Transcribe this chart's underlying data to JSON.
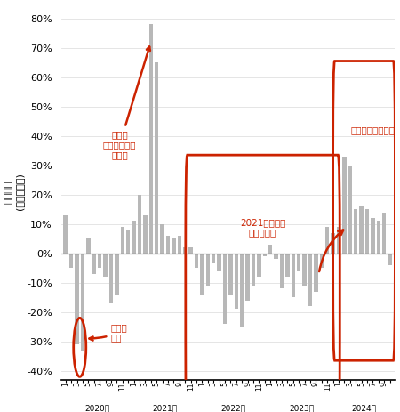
{
  "ylabel": "成約戸数\n(前年同月比)",
  "ylim": [
    -0.43,
    0.85
  ],
  "yticks": [
    -0.4,
    -0.3,
    -0.2,
    -0.1,
    0.0,
    0.1,
    0.2,
    0.3,
    0.4,
    0.5,
    0.6,
    0.7,
    0.8
  ],
  "bar_color": "#b8b8b8",
  "annotation_color": "#cc2200",
  "values": [
    0.13,
    -0.05,
    -0.31,
    -0.33,
    0.05,
    -0.07,
    -0.05,
    -0.08,
    -0.17,
    -0.14,
    0.09,
    0.08,
    0.11,
    0.2,
    0.13,
    0.78,
    0.65,
    0.1,
    0.06,
    0.05,
    0.06,
    0.02,
    0.02,
    -0.05,
    -0.14,
    -0.11,
    -0.03,
    -0.06,
    -0.24,
    -0.14,
    -0.19,
    -0.25,
    -0.16,
    -0.11,
    -0.08,
    -0.01,
    0.03,
    -0.02,
    -0.12,
    -0.08,
    -0.15,
    -0.06,
    -0.11,
    -0.18,
    -0.13,
    -0.05,
    0.09,
    0.07,
    0.09,
    0.33,
    0.3,
    0.15,
    0.16,
    0.15,
    0.12,
    0.11,
    0.14,
    -0.04
  ],
  "year_starts": [
    0,
    12,
    24,
    36,
    48
  ],
  "months_per_year": [
    12,
    12,
    12,
    12,
    10
  ],
  "year_labels": [
    "2020年",
    "2021年",
    "2022年",
    "2023年",
    "2024年"
  ],
  "annotation1_text": "第一波\n急減",
  "annotation2_text": "第一波\n（前年同月）\nの反動",
  "annotation3_text": "2021年末から\n減っていた",
  "annotation4_text": "直近は増えている"
}
